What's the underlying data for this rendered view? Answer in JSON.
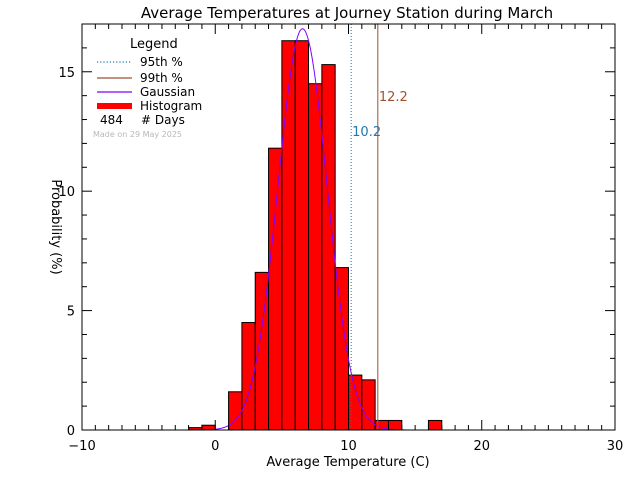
{
  "chart_data": {
    "type": "bar",
    "title": "Average Temperatures at Journey Station during March",
    "xlabel": "Average Temperature (C)",
    "ylabel": "Probability (%)",
    "xlim": [
      -10,
      30
    ],
    "ylim": [
      0,
      17
    ],
    "x_ticks": [
      -10,
      0,
      10,
      20,
      30
    ],
    "y_ticks": [
      0,
      5,
      10,
      15
    ],
    "x_minor_step": 1,
    "y_minor_step": 1,
    "grid": false,
    "bin_width": 1,
    "histogram": {
      "name": "Histogram",
      "color": "#ff0000",
      "bins": [
        {
          "x0": -2,
          "x1": -1,
          "value": 0.1
        },
        {
          "x0": -1,
          "x1": 0,
          "value": 0.2
        },
        {
          "x0": 0,
          "x1": 1,
          "value": 0.0
        },
        {
          "x0": 1,
          "x1": 2,
          "value": 1.6
        },
        {
          "x0": 2,
          "x1": 3,
          "value": 4.5
        },
        {
          "x0": 3,
          "x1": 4,
          "value": 6.6
        },
        {
          "x0": 4,
          "x1": 5,
          "value": 11.8
        },
        {
          "x0": 5,
          "x1": 6,
          "value": 16.3
        },
        {
          "x0": 6,
          "x1": 7,
          "value": 16.3
        },
        {
          "x0": 7,
          "x1": 8,
          "value": 14.5
        },
        {
          "x0": 8,
          "x1": 9,
          "value": 15.3
        },
        {
          "x0": 9,
          "x1": 10,
          "value": 6.8
        },
        {
          "x0": 10,
          "x1": 11,
          "value": 2.3
        },
        {
          "x0": 11,
          "x1": 12,
          "value": 2.1
        },
        {
          "x0": 12,
          "x1": 13,
          "value": 0.4
        },
        {
          "x0": 13,
          "x1": 14,
          "value": 0.4
        },
        {
          "x0": 14,
          "x1": 15,
          "value": 0.0
        },
        {
          "x0": 15,
          "x1": 16,
          "value": 0.0
        },
        {
          "x0": 16,
          "x1": 17,
          "value": 0.4
        }
      ]
    },
    "gaussian": {
      "name": "Gaussian",
      "color": "#8000ff",
      "mean": 6.55,
      "sigma": 1.85,
      "peak": 16.8
    },
    "percentile_lines": [
      {
        "name": "95th %",
        "value": 10.2,
        "label": "10.2",
        "color": "#1f77b4",
        "style": "dotted"
      },
      {
        "name": "99th %",
        "value": 12.2,
        "label": "12.2",
        "color": "#a0522d",
        "style": "solid"
      }
    ],
    "legend": {
      "title": "Legend",
      "position": "top-left",
      "entries": [
        {
          "label": "95th %",
          "kind": "dotted",
          "color": "#1f77b4"
        },
        {
          "label": "99th %",
          "kind": "line",
          "color": "#a0522d"
        },
        {
          "label": "Gaussian",
          "kind": "line",
          "color": "#8000ff"
        },
        {
          "label": "Histogram",
          "kind": "thick",
          "color": "#ff0000"
        }
      ],
      "days_count": "484",
      "days_label": "# Days"
    },
    "note": "Made on 29 May 2025"
  }
}
